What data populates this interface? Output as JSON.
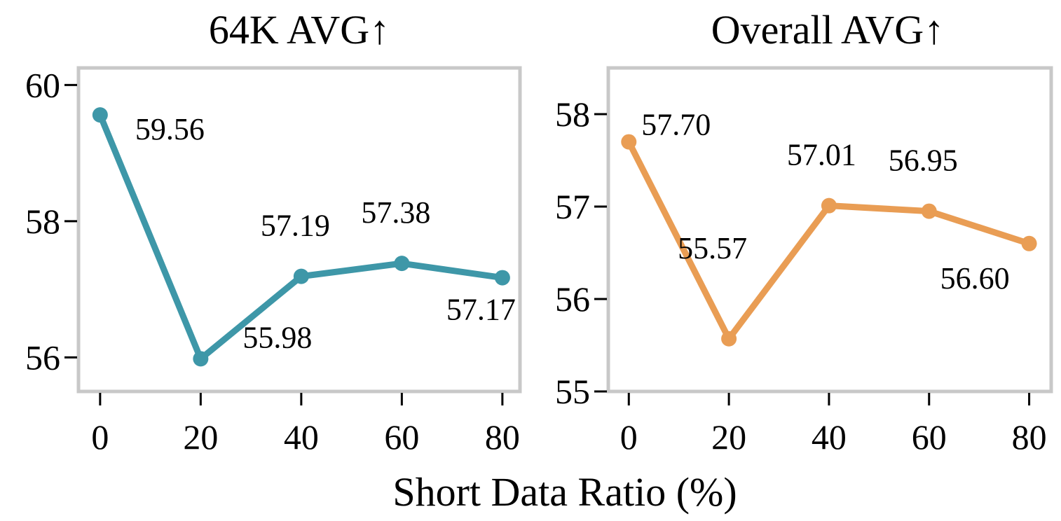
{
  "figure": {
    "xlabel": "Short Data Ratio (%)"
  },
  "chart_data": [
    {
      "type": "line",
      "title": "64K AVG↑",
      "x": [
        0,
        20,
        40,
        60,
        80
      ],
      "y": [
        59.56,
        55.98,
        57.19,
        57.38,
        57.17
      ],
      "point_labels": [
        "59.56",
        "55.98",
        "57.19",
        "57.38",
        "57.17"
      ],
      "color": "#3e97a8",
      "xlim": [
        -4.3,
        83.5
      ],
      "ylim": [
        55.5,
        60.25
      ],
      "xticks": [
        0,
        20,
        40,
        60,
        80
      ],
      "xtick_labels": [
        "0",
        "20",
        "40",
        "60",
        "80"
      ],
      "yticks": [
        56,
        58,
        60
      ],
      "ytick_labels": [
        "56",
        "58",
        "60"
      ],
      "xlabel": "",
      "ylabel": "",
      "grid": false,
      "legend": false
    },
    {
      "type": "line",
      "title": "Overall AVG↑",
      "x": [
        0,
        20,
        40,
        60,
        80
      ],
      "y": [
        57.7,
        55.57,
        57.01,
        56.95,
        56.6
      ],
      "point_labels": [
        "57.70",
        "55.57",
        "57.01",
        "56.95",
        "56.60"
      ],
      "color": "#e99d54",
      "xlim": [
        -4.1,
        84.4
      ],
      "ylim": [
        55.0,
        58.5
      ],
      "xticks": [
        0,
        20,
        40,
        60,
        80
      ],
      "xtick_labels": [
        "0",
        "20",
        "40",
        "60",
        "80"
      ],
      "yticks": [
        55,
        56,
        57,
        58
      ],
      "ytick_labels": [
        "55",
        "56",
        "57",
        "58"
      ],
      "xlabel": "",
      "ylabel": "",
      "grid": false,
      "legend": false
    }
  ]
}
